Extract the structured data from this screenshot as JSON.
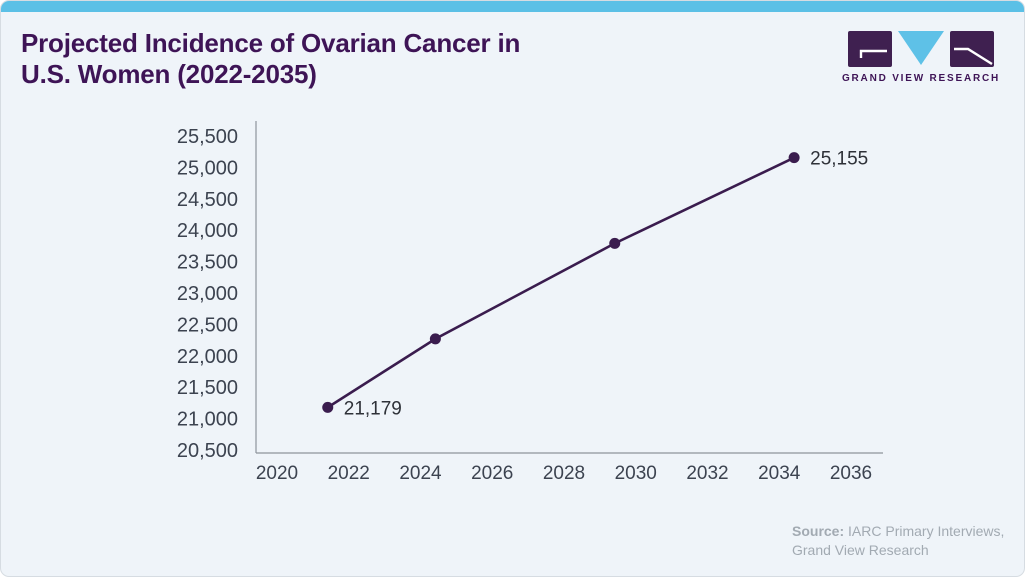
{
  "theme": {
    "accent_bar": "#5bc0e6",
    "card_bg": "#eff4f9",
    "card_border": "#d6dce2",
    "title_color": "#3e1456",
    "line_color": "#3a1c4e",
    "axis_color": "#8e949c",
    "tick_label_color": "#3c4350",
    "point_label_color": "#2e3138",
    "source_color": "#a2aab2"
  },
  "header": {
    "title_line1": "Projected Incidence of Ovarian Cancer in",
    "title_line2": "U.S. Women (2022-2035)"
  },
  "logo": {
    "brand_text": "GRAND VIEW RESEARCH",
    "mark_square_color": "#3f2050",
    "mark_triangle_color": "#5ec1e7"
  },
  "chart_data": {
    "type": "line",
    "title": "Projected Incidence of Ovarian Cancer in U.S. Women (2022-2035)",
    "x": [
      2022,
      2025,
      2030,
      2035
    ],
    "values": [
      21179,
      22270,
      23790,
      25155
    ],
    "point_labels": [
      "21,179",
      "",
      "",
      "25,155"
    ],
    "x_ticks": [
      2020,
      2022,
      2024,
      2026,
      2028,
      2030,
      2032,
      2034,
      2036
    ],
    "y_ticks": [
      20500,
      21000,
      21500,
      22000,
      22500,
      23000,
      23500,
      24000,
      24500,
      25000,
      25500
    ],
    "ylim": [
      20500,
      25500
    ],
    "xlim": [
      2019.4,
      2036.6
    ],
    "grid": false,
    "legend": null
  },
  "footer": {
    "source_label": "Source:",
    "source_line1": "IARC Primary Interviews,",
    "source_line2": "Grand View Research"
  }
}
